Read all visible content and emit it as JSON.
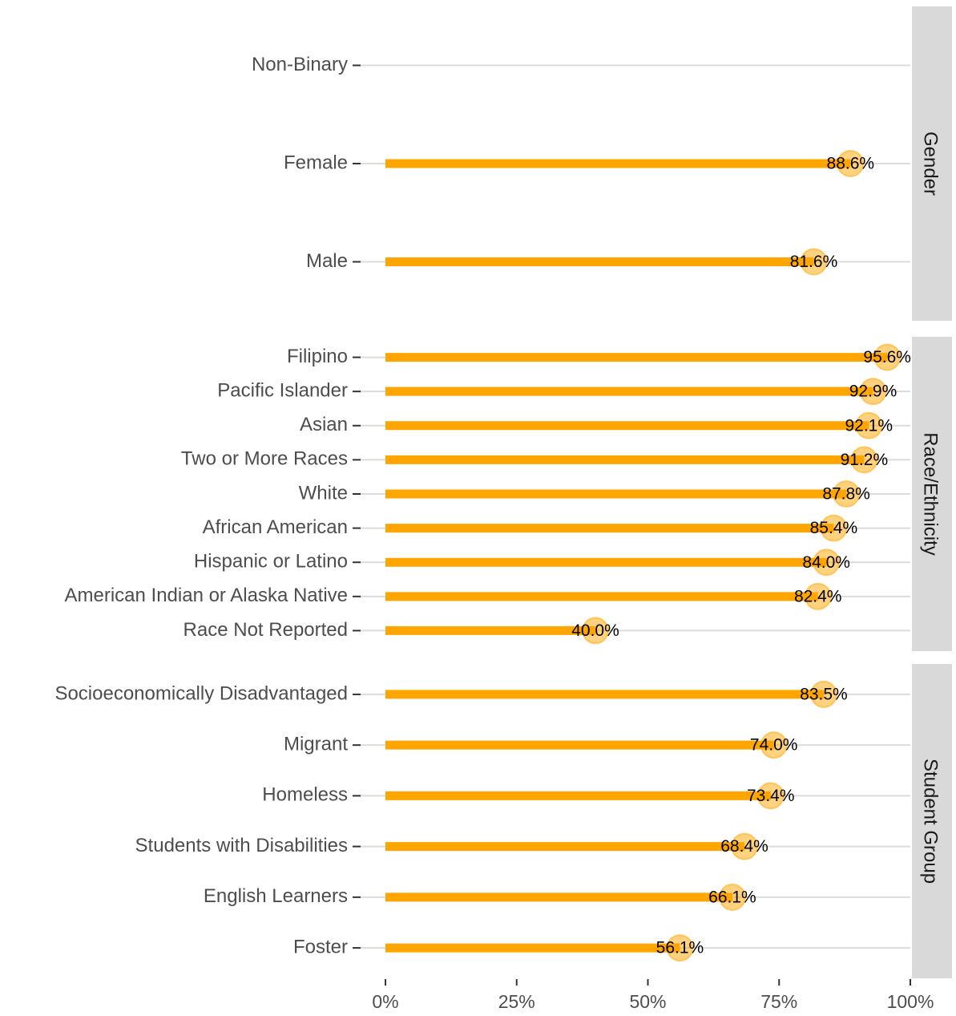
{
  "chart_data": {
    "type": "lollipop",
    "color": "#ffa500",
    "xlim": [
      0,
      100
    ],
    "xticks": [
      {
        "value": 0,
        "label": "0%"
      },
      {
        "value": 25,
        "label": "25%"
      },
      {
        "value": 50,
        "label": "50%"
      },
      {
        "value": 75,
        "label": "75%"
      },
      {
        "value": 100,
        "label": "100%"
      }
    ],
    "grid": true,
    "facets": [
      {
        "name": "Gender",
        "categories": [
          "Non-Binary",
          "Female",
          "Male"
        ],
        "values": [
          null,
          88.6,
          81.6
        ],
        "value_labels": [
          null,
          "88.6%",
          "81.6%"
        ]
      },
      {
        "name": "Race/Ethnicity",
        "categories": [
          "Filipino",
          "Pacific Islander",
          "Asian",
          "Two or More Races",
          "White",
          "African American",
          "Hispanic or Latino",
          "American Indian or Alaska Native",
          "Race Not Reported"
        ],
        "values": [
          95.6,
          92.9,
          92.1,
          91.2,
          87.8,
          85.4,
          84.0,
          82.4,
          40.0
        ],
        "value_labels": [
          "95.6%",
          "92.9%",
          "92.1%",
          "91.2%",
          "87.8%",
          "85.4%",
          "84.0%",
          "82.4%",
          "40.0%"
        ]
      },
      {
        "name": "Student Group",
        "categories": [
          "Socioeconomically Disadvantaged",
          "Migrant",
          "Homeless",
          "Students with Disabilities",
          "English Learners",
          "Foster"
        ],
        "values": [
          83.5,
          74.0,
          73.4,
          68.4,
          66.1,
          56.1
        ],
        "value_labels": [
          "83.5%",
          "74.0%",
          "73.4%",
          "68.4%",
          "66.1%",
          "56.1%"
        ]
      }
    ]
  }
}
